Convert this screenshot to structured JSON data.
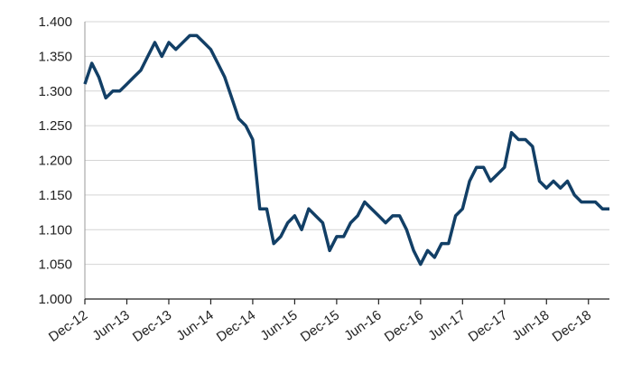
{
  "chart_data": {
    "type": "line",
    "x": [
      "2012-12",
      "2013-01",
      "2013-02",
      "2013-03",
      "2013-04",
      "2013-05",
      "2013-06",
      "2013-07",
      "2013-08",
      "2013-09",
      "2013-10",
      "2013-11",
      "2013-12",
      "2014-01",
      "2014-02",
      "2014-03",
      "2014-04",
      "2014-05",
      "2014-06",
      "2014-07",
      "2014-08",
      "2014-09",
      "2014-10",
      "2014-11",
      "2014-12",
      "2015-01",
      "2015-02",
      "2015-03",
      "2015-04",
      "2015-05",
      "2015-06",
      "2015-07",
      "2015-08",
      "2015-09",
      "2015-10",
      "2015-11",
      "2015-12",
      "2016-01",
      "2016-02",
      "2016-03",
      "2016-04",
      "2016-05",
      "2016-06",
      "2016-07",
      "2016-08",
      "2016-09",
      "2016-10",
      "2016-11",
      "2016-12",
      "2017-01",
      "2017-02",
      "2017-03",
      "2017-04",
      "2017-05",
      "2017-06",
      "2017-07",
      "2017-08",
      "2017-09",
      "2017-10",
      "2017-11",
      "2017-12",
      "2018-01",
      "2018-02",
      "2018-03",
      "2018-04",
      "2018-05",
      "2018-06",
      "2018-07",
      "2018-08",
      "2018-09",
      "2018-10",
      "2018-11",
      "2018-12",
      "2019-01",
      "2019-02",
      "2019-03"
    ],
    "series": [
      {
        "color": "#123f66",
        "values": [
          1.31,
          1.34,
          1.32,
          1.29,
          1.3,
          1.3,
          1.31,
          1.32,
          1.33,
          1.35,
          1.37,
          1.35,
          1.37,
          1.36,
          1.37,
          1.38,
          1.38,
          1.37,
          1.36,
          1.34,
          1.32,
          1.29,
          1.26,
          1.25,
          1.23,
          1.13,
          1.13,
          1.08,
          1.09,
          1.11,
          1.12,
          1.1,
          1.13,
          1.12,
          1.11,
          1.07,
          1.09,
          1.09,
          1.11,
          1.12,
          1.14,
          1.13,
          1.12,
          1.11,
          1.12,
          1.12,
          1.1,
          1.07,
          1.05,
          1.07,
          1.06,
          1.08,
          1.08,
          1.12,
          1.13,
          1.17,
          1.19,
          1.19,
          1.17,
          1.18,
          1.19,
          1.24,
          1.23,
          1.23,
          1.22,
          1.17,
          1.16,
          1.17,
          1.16,
          1.17,
          1.15,
          1.14,
          1.14,
          1.14,
          1.13,
          1.13
        ]
      }
    ],
    "xlim": [
      "2012-12",
      "2019-03"
    ],
    "xticks": [
      {
        "value": "2012-12",
        "label": "Dec-12"
      },
      {
        "value": "2013-06",
        "label": "Jun-13"
      },
      {
        "value": "2013-12",
        "label": "Dec-13"
      },
      {
        "value": "2014-06",
        "label": "Jun-14"
      },
      {
        "value": "2014-12",
        "label": "Dec-14"
      },
      {
        "value": "2015-06",
        "label": "Jun-15"
      },
      {
        "value": "2015-12",
        "label": "Dec-15"
      },
      {
        "value": "2016-06",
        "label": "Jun-16"
      },
      {
        "value": "2016-12",
        "label": "Dec-16"
      },
      {
        "value": "2017-06",
        "label": "Jun-17"
      },
      {
        "value": "2017-12",
        "label": "Dec-17"
      },
      {
        "value": "2018-06",
        "label": "Jun-18"
      },
      {
        "value": "2018-12",
        "label": "Dec-18"
      }
    ],
    "ylim": [
      1.0,
      1.4
    ],
    "yticks": [
      {
        "value": 1.0,
        "label": "1.000"
      },
      {
        "value": 1.05,
        "label": "1.050"
      },
      {
        "value": 1.1,
        "label": "1.100"
      },
      {
        "value": 1.15,
        "label": "1.150"
      },
      {
        "value": 1.2,
        "label": "1.200"
      },
      {
        "value": 1.25,
        "label": "1.250"
      },
      {
        "value": 1.3,
        "label": "1.300"
      },
      {
        "value": 1.35,
        "label": "1.350"
      },
      {
        "value": 1.4,
        "label": "1.400"
      }
    ],
    "grid": true
  }
}
